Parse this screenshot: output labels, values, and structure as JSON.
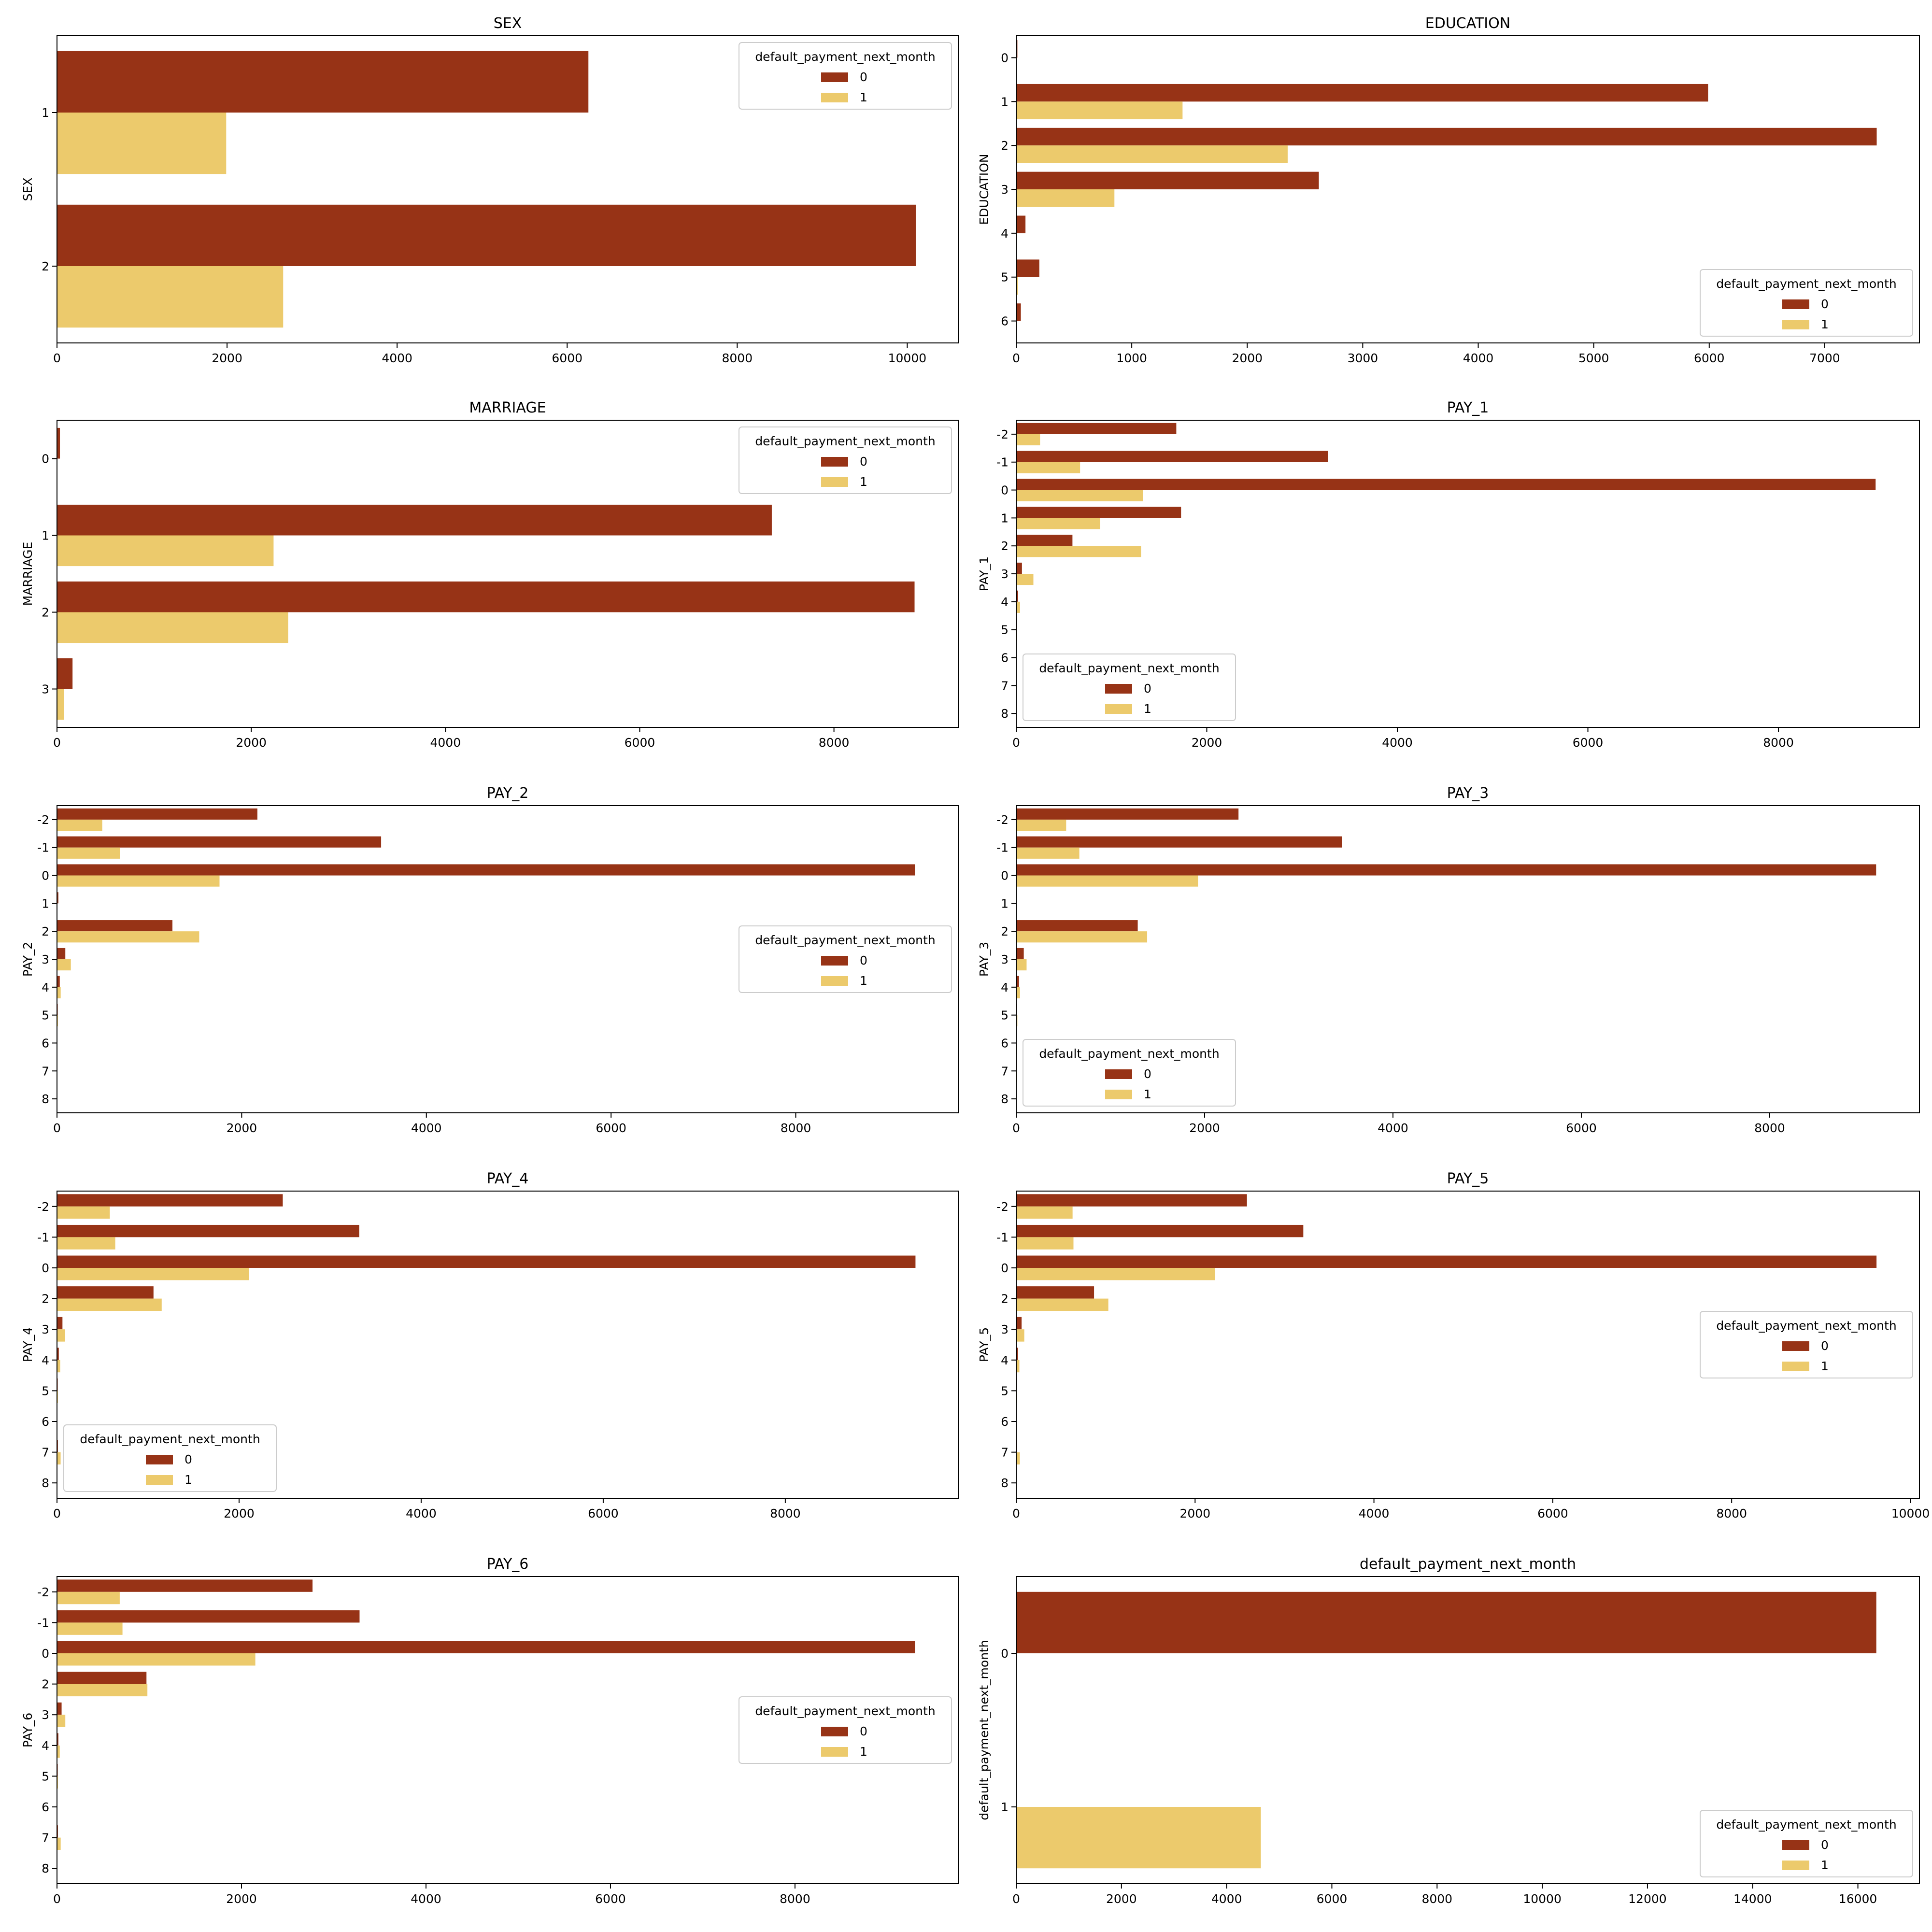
{
  "chart_data": [
    {
      "type": "bar",
      "orientation": "horizontal",
      "title": "SEX",
      "ylabel": "SEX",
      "xlabel": "",
      "categories": [
        "1",
        "2"
      ],
      "series": [
        {
          "name": "0",
          "values": [
            6250,
            10100
          ]
        },
        {
          "name": "1",
          "values": [
            1990,
            2660
          ]
        }
      ],
      "xlim": [
        0,
        10600
      ],
      "xticks": [
        0,
        2000,
        4000,
        6000,
        8000,
        10000
      ],
      "legend": {
        "title": "default_payment_next_month",
        "position": "top-right"
      },
      "grid": false
    },
    {
      "type": "bar",
      "orientation": "horizontal",
      "title": "EDUCATION",
      "ylabel": "EDUCATION",
      "xlabel": "",
      "categories": [
        "0",
        "1",
        "2",
        "3",
        "4",
        "5",
        "6"
      ],
      "series": [
        {
          "name": "0",
          "values": [
            10,
            5990,
            7450,
            2620,
            80,
            200,
            40
          ]
        },
        {
          "name": "1",
          "values": [
            0,
            1440,
            2350,
            850,
            5,
            15,
            5
          ]
        }
      ],
      "xlim": [
        0,
        7820
      ],
      "xticks": [
        0,
        1000,
        2000,
        3000,
        4000,
        5000,
        6000,
        7000
      ],
      "legend": {
        "title": "default_payment_next_month",
        "position": "bottom-right"
      },
      "grid": false
    },
    {
      "type": "bar",
      "orientation": "horizontal",
      "title": "MARRIAGE",
      "ylabel": "MARRIAGE",
      "xlabel": "",
      "categories": [
        "0",
        "1",
        "2",
        "3"
      ],
      "series": [
        {
          "name": "0",
          "values": [
            30,
            7360,
            8830,
            160
          ]
        },
        {
          "name": "1",
          "values": [
            5,
            2230,
            2380,
            70
          ]
        }
      ],
      "xlim": [
        0,
        9280
      ],
      "xticks": [
        0,
        2000,
        4000,
        6000,
        8000
      ],
      "legend": {
        "title": "default_payment_next_month",
        "position": "top-right"
      },
      "grid": false
    },
    {
      "type": "bar",
      "orientation": "horizontal",
      "title": "PAY_1",
      "ylabel": "PAY_1",
      "xlabel": "",
      "categories": [
        "-2",
        "-1",
        "0",
        "1",
        "2",
        "3",
        "4",
        "5",
        "6",
        "7",
        "8"
      ],
      "series": [
        {
          "name": "0",
          "values": [
            1680,
            3270,
            9020,
            1730,
            590,
            60,
            20,
            8,
            3,
            3,
            3
          ]
        },
        {
          "name": "1",
          "values": [
            250,
            670,
            1330,
            880,
            1310,
            180,
            40,
            10,
            5,
            5,
            5
          ]
        }
      ],
      "xlim": [
        0,
        9480
      ],
      "xticks": [
        0,
        2000,
        4000,
        6000,
        8000
      ],
      "legend": {
        "title": "default_payment_next_month",
        "position": "bottom-left"
      },
      "grid": false
    },
    {
      "type": "bar",
      "orientation": "horizontal",
      "title": "PAY_2",
      "ylabel": "PAY_2",
      "xlabel": "",
      "categories": [
        "-2",
        "-1",
        "0",
        "1",
        "2",
        "3",
        "4",
        "5",
        "6",
        "7",
        "8"
      ],
      "series": [
        {
          "name": "0",
          "values": [
            2170,
            3510,
            9290,
            15,
            1250,
            90,
            30,
            8,
            3,
            3,
            1
          ]
        },
        {
          "name": "1",
          "values": [
            490,
            680,
            1760,
            5,
            1540,
            150,
            40,
            10,
            5,
            5,
            1
          ]
        }
      ],
      "xlim": [
        0,
        9760
      ],
      "xticks": [
        0,
        2000,
        4000,
        6000,
        8000
      ],
      "legend": {
        "title": "default_payment_next_month",
        "position": "center-right"
      },
      "grid": false
    },
    {
      "type": "bar",
      "orientation": "horizontal",
      "title": "PAY_3",
      "ylabel": "PAY_3",
      "xlabel": "",
      "categories": [
        "-2",
        "-1",
        "0",
        "1",
        "2",
        "3",
        "4",
        "5",
        "6",
        "7",
        "8"
      ],
      "series": [
        {
          "name": "0",
          "values": [
            2360,
            3460,
            9130,
            3,
            1290,
            80,
            30,
            8,
            5,
            8,
            3
          ]
        },
        {
          "name": "1",
          "values": [
            530,
            670,
            1930,
            3,
            1390,
            110,
            40,
            12,
            8,
            10,
            3
          ]
        }
      ],
      "xlim": [
        0,
        9590
      ],
      "xticks": [
        0,
        2000,
        4000,
        6000,
        8000
      ],
      "legend": {
        "title": "default_payment_next_month",
        "position": "bottom-left"
      },
      "grid": false
    },
    {
      "type": "bar",
      "orientation": "horizontal",
      "title": "PAY_4",
      "ylabel": "PAY_4",
      "xlabel": "",
      "categories": [
        "-2",
        "-1",
        "0",
        "2",
        "3",
        "4",
        "5",
        "6",
        "7",
        "8"
      ],
      "series": [
        {
          "name": "0",
          "values": [
            2480,
            3320,
            9430,
            1060,
            60,
            20,
            8,
            3,
            10,
            3
          ]
        },
        {
          "name": "1",
          "values": [
            580,
            640,
            2110,
            1150,
            90,
            35,
            10,
            5,
            40,
            3
          ]
        }
      ],
      "xlim": [
        0,
        9900
      ],
      "xticks": [
        0,
        2000,
        4000,
        6000,
        8000
      ],
      "legend": {
        "title": "default_payment_next_month",
        "position": "bottom-left"
      },
      "grid": false
    },
    {
      "type": "bar",
      "orientation": "horizontal",
      "title": "PAY_5",
      "ylabel": "PAY_5",
      "xlabel": "",
      "categories": [
        "-2",
        "-1",
        "0",
        "2",
        "3",
        "4",
        "5",
        "6",
        "7",
        "8"
      ],
      "series": [
        {
          "name": "0",
          "values": [
            2580,
            3210,
            9620,
            870,
            60,
            20,
            8,
            3,
            10,
            1
          ]
        },
        {
          "name": "1",
          "values": [
            630,
            640,
            2220,
            1030,
            90,
            35,
            10,
            5,
            40,
            1
          ]
        }
      ],
      "xlim": [
        0,
        10100
      ],
      "xticks": [
        0,
        2000,
        4000,
        6000,
        8000,
        10000
      ],
      "legend": {
        "title": "default_payment_next_month",
        "position": "center-right"
      },
      "grid": false
    },
    {
      "type": "bar",
      "orientation": "horizontal",
      "title": "PAY_6",
      "ylabel": "PAY_6",
      "xlabel": "",
      "categories": [
        "-2",
        "-1",
        "0",
        "2",
        "3",
        "4",
        "5",
        "6",
        "7",
        "8"
      ],
      "series": [
        {
          "name": "0",
          "values": [
            2770,
            3280,
            9300,
            970,
            50,
            15,
            8,
            3,
            10,
            1
          ]
        },
        {
          "name": "1",
          "values": [
            680,
            710,
            2150,
            980,
            90,
            30,
            10,
            5,
            40,
            1
          ]
        }
      ],
      "xlim": [
        0,
        9770
      ],
      "xticks": [
        0,
        2000,
        4000,
        6000,
        8000
      ],
      "legend": {
        "title": "default_payment_next_month",
        "position": "center-right"
      },
      "grid": false
    },
    {
      "type": "bar",
      "orientation": "horizontal",
      "title": "default_payment_next_month",
      "ylabel": "default_payment_next_month",
      "xlabel": "",
      "categories": [
        "0",
        "1"
      ],
      "series": [
        {
          "name": "0",
          "values": [
            16350,
            0
          ]
        },
        {
          "name": "1",
          "values": [
            0,
            4650
          ]
        }
      ],
      "xlim": [
        0,
        17170
      ],
      "xticks": [
        0,
        2000,
        4000,
        6000,
        8000,
        10000,
        12000,
        14000,
        16000
      ],
      "legend": {
        "title": "default_payment_next_month",
        "position": "bottom-right"
      },
      "grid": false
    }
  ],
  "colors": {
    "series_0": "#973316",
    "series_1": "#ecca6c"
  }
}
